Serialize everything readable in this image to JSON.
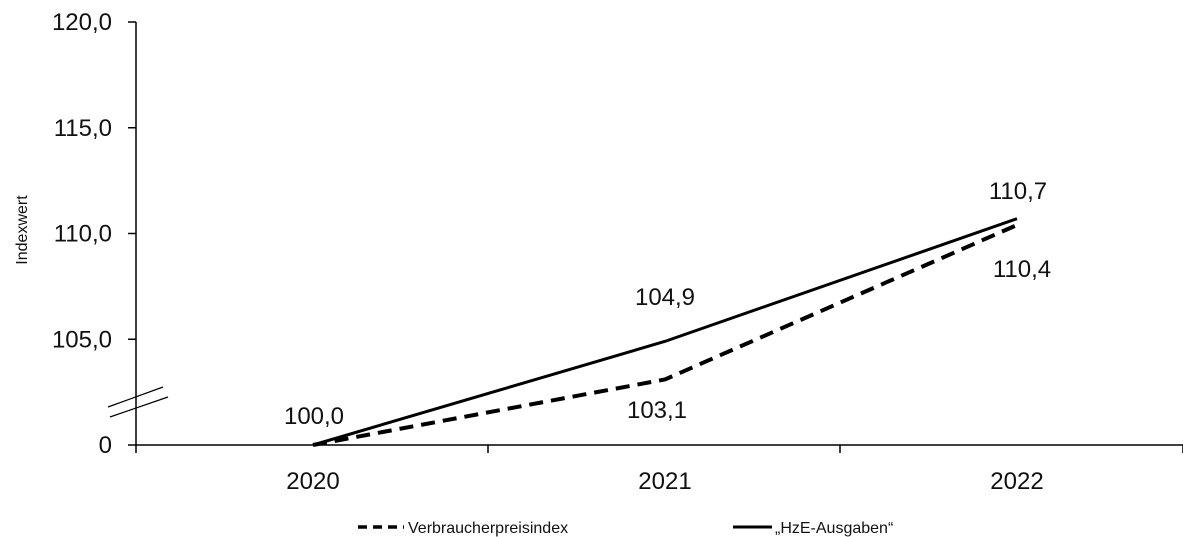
{
  "chart_data": {
    "type": "line",
    "xlabel": "",
    "ylabel": "Indexwert",
    "categories": [
      "2020",
      "2021",
      "2022"
    ],
    "y_ticks": [
      "0",
      "105,0",
      "110,0",
      "115,0",
      "120,0"
    ],
    "axis_break": true,
    "ylim": [
      100,
      120
    ],
    "grid": false,
    "legend_position": "bottom",
    "series": [
      {
        "name": "Verbraucherpreisindex",
        "style": "dashed",
        "color": "#000000",
        "values": [
          100.0,
          103.1,
          110.4
        ],
        "labels": [
          "100,0",
          "103,1",
          "110,4"
        ]
      },
      {
        "name": "„HzE-Ausgaben“",
        "style": "solid",
        "color": "#000000",
        "values": [
          100.0,
          104.9,
          110.7
        ],
        "labels": [
          "100,0",
          "104,9",
          "110,7"
        ]
      }
    ]
  }
}
